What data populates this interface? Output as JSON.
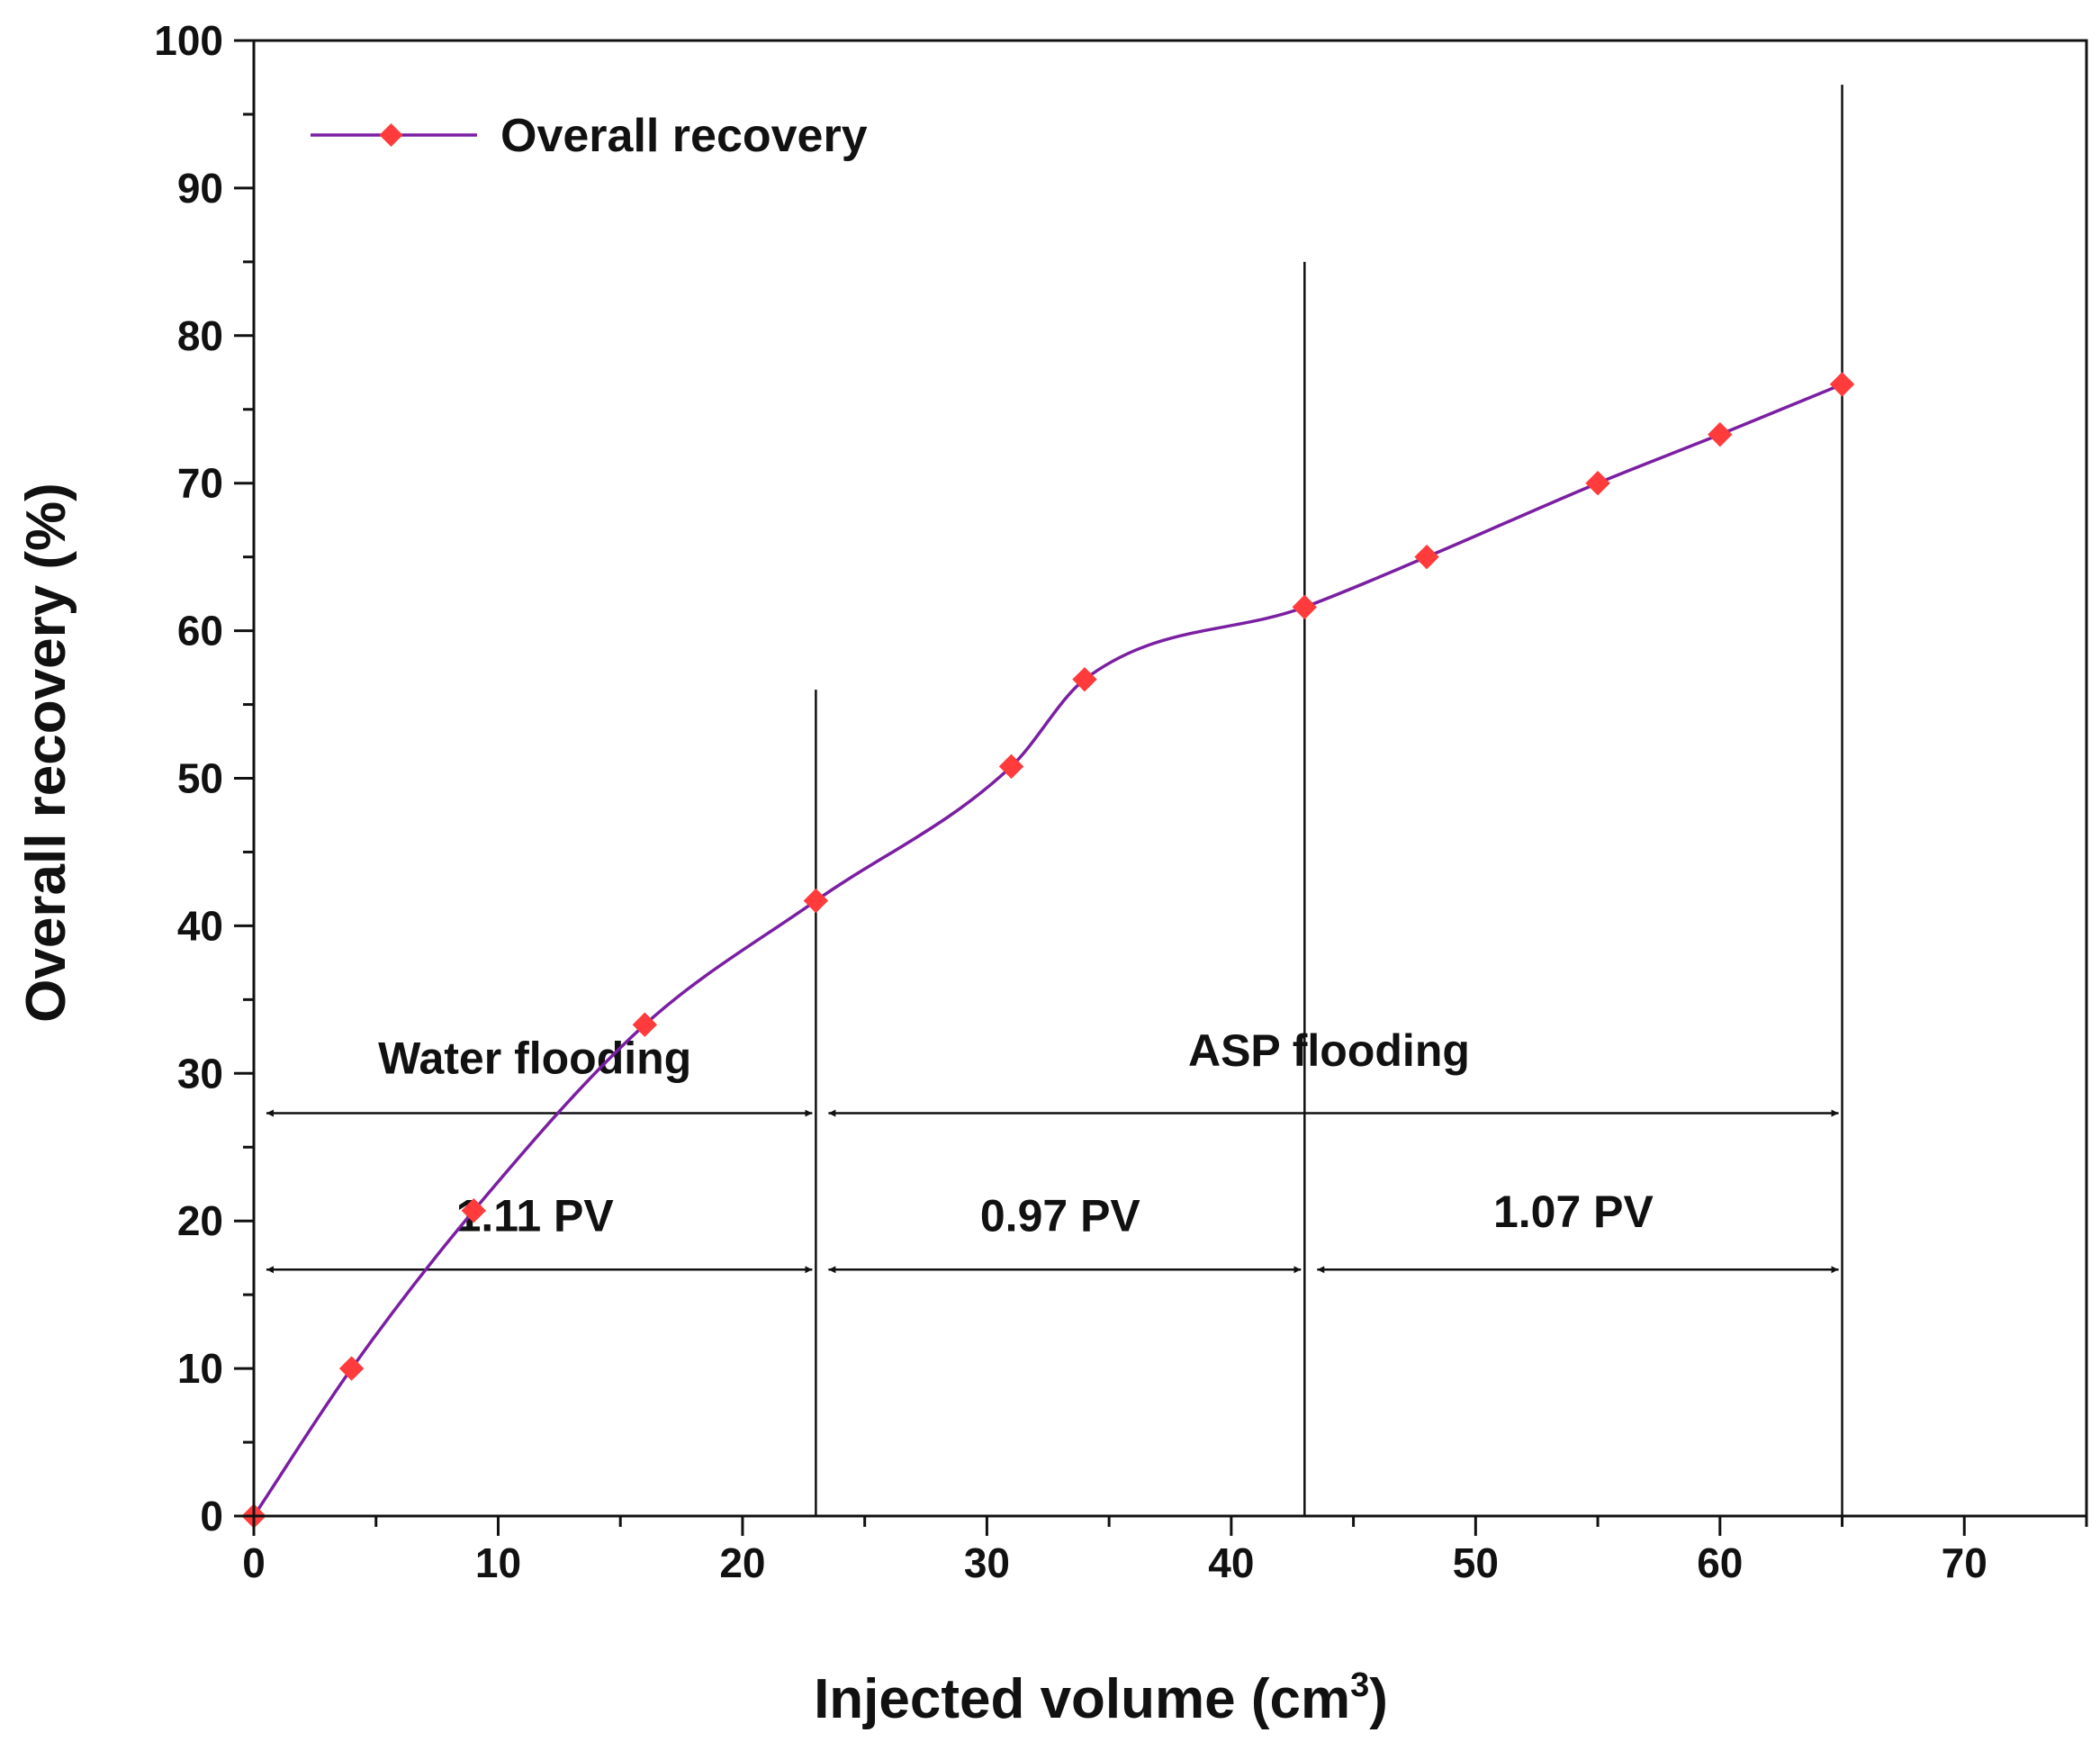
{
  "chart_data": {
    "type": "line",
    "xlabel_main": "Injected volume (cm",
    "xlabel_sup": "3",
    "xlabel_tail": ")",
    "ylabel": "Overall recovery (%)",
    "xlim": [
      0,
      75
    ],
    "ylim": [
      0,
      100
    ],
    "x_ticks": [
      "0",
      "10",
      "20",
      "30",
      "40",
      "50",
      "60",
      "70"
    ],
    "y_ticks": [
      "0",
      "10",
      "20",
      "30",
      "40",
      "50",
      "60",
      "70",
      "80",
      "90",
      "100"
    ],
    "legend_position": "top-left",
    "series": [
      {
        "name": "Overall recovery",
        "line_color": "#7a1fa2",
        "marker_color": "#ff3b3b",
        "marker": "diamond",
        "x": [
          0,
          4,
          9,
          16,
          23,
          31,
          34,
          43,
          48,
          55,
          60,
          65
        ],
        "y": [
          0,
          10,
          20.7,
          33.3,
          41.7,
          50.8,
          56.7,
          61.6,
          65,
          70,
          73.3,
          76.7
        ]
      }
    ],
    "vertical_lines": [
      {
        "x": 23,
        "y_top": 56
      },
      {
        "x": 43,
        "y_top": 85
      },
      {
        "x": 65,
        "y_top": 97
      }
    ],
    "phases": [
      {
        "label": "Water flooding",
        "x_start": 0,
        "x_end": 23,
        "y": 27.3,
        "label_y": 30
      },
      {
        "label": "ASP flooding",
        "x_start": 23,
        "x_end": 65,
        "y": 27.3,
        "label_y": 30.5
      }
    ],
    "pore_volumes": [
      {
        "label": "1.11 PV",
        "x_start": 0,
        "x_end": 23,
        "y": 16.7,
        "label_y": 19.3
      },
      {
        "label": "0.97 PV",
        "x_start": 23,
        "x_end": 43,
        "y": 16.7,
        "label_y": 19.3
      },
      {
        "label": "1.07 PV",
        "x_start": 43,
        "x_end": 65,
        "y": 16.7,
        "label_y": 19.6
      }
    ]
  }
}
